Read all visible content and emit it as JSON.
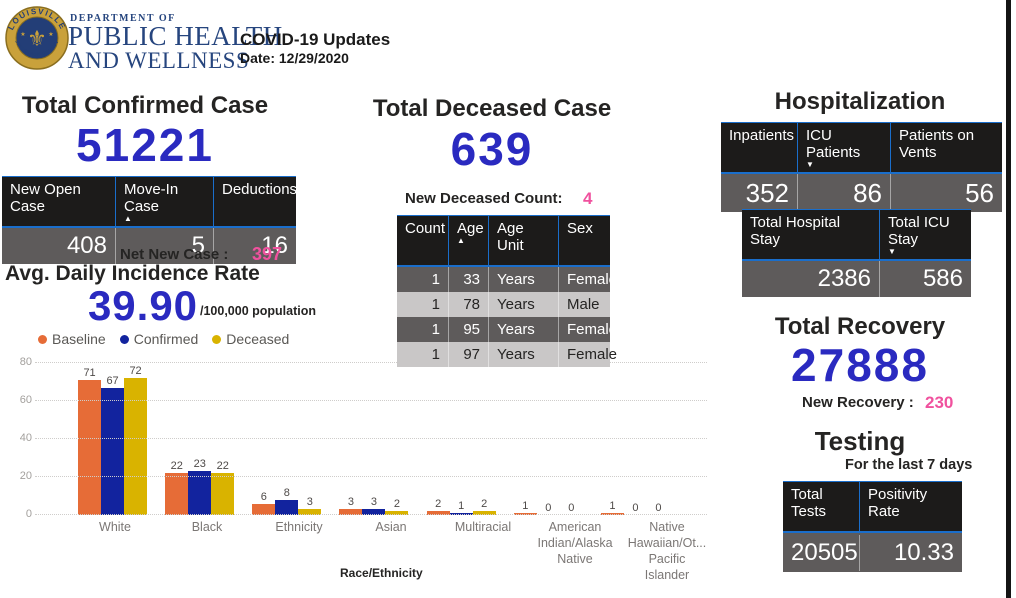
{
  "header": {
    "dept_line1": "DEPARTMENT OF",
    "dept_line2": "PUBLIC HEALTH",
    "dept_line3": "AND WELLNESS",
    "title": "COVID-19 Updates",
    "date": "Date: 12/29/2020",
    "logo": {
      "top_text": "LOUISVILLE",
      "bottom_text": "JEFFERSON COUNTY",
      "fleur": "⚜",
      "star": "★"
    }
  },
  "confirmed": {
    "title": "Total Confirmed Case",
    "value": "51221",
    "table": {
      "columns": [
        {
          "label": "New Open Case",
          "sort_icon": ""
        },
        {
          "label": "Move-In Case",
          "sort_icon": "▲"
        },
        {
          "label": "Deductions",
          "sort_icon": ""
        }
      ],
      "row": [
        "408",
        "5",
        "16"
      ]
    },
    "net_new_label": "Net New Case :",
    "net_new_value": "397"
  },
  "incidence": {
    "title": "Avg. Daily Incidence Rate",
    "value": "39.90",
    "unit": "/100,000 population"
  },
  "chart_data": {
    "type": "bar",
    "title": "",
    "categories": [
      "White",
      "Black",
      "Ethnicity",
      "Asian",
      "Multiracial",
      "American Indian/Alaska Native",
      "Native Hawaiian/Ot... Pacific Islander"
    ],
    "series": [
      {
        "name": "Baseline",
        "color": "#E66C37",
        "values": [
          71,
          22,
          6,
          3,
          2,
          1,
          1
        ]
      },
      {
        "name": "Confirmed",
        "color": "#12239E",
        "values": [
          67,
          23,
          8,
          3,
          1,
          0,
          0
        ]
      },
      {
        "name": "Deceased",
        "color": "#D9B300",
        "values": [
          72,
          22,
          3,
          2,
          2,
          0,
          0
        ]
      }
    ],
    "xlabel": "Race/Ethnicity",
    "ylabel": "",
    "ylim": [
      0,
      80
    ],
    "yticks": [
      0,
      20,
      40,
      60,
      80
    ],
    "grid": "dotted-horizontal",
    "legend_position": "top-left"
  },
  "deceased": {
    "title": "Total Deceased Case",
    "value": "639",
    "new_count_label": "New Deceased Count:",
    "new_count_value": "4",
    "table": {
      "columns": [
        {
          "label": "Count",
          "sort_icon": ""
        },
        {
          "label": "Age",
          "sort_icon": "▲"
        },
        {
          "label": "Age Unit",
          "sort_icon": ""
        },
        {
          "label": "Sex",
          "sort_icon": ""
        }
      ],
      "rows": [
        [
          "1",
          "33",
          "Years",
          "Female"
        ],
        [
          "1",
          "78",
          "Years",
          "Male"
        ],
        [
          "1",
          "95",
          "Years",
          "Female"
        ],
        [
          "1",
          "97",
          "Years",
          "Female"
        ]
      ]
    }
  },
  "hospitalization": {
    "title": "Hospitalization",
    "table1": {
      "columns": [
        {
          "label": "Inpatients",
          "sort_icon": ""
        },
        {
          "label": "ICU Patients",
          "sort_icon": "▼"
        },
        {
          "label": "Patients on Vents",
          "sort_icon": ""
        }
      ],
      "row": [
        "352",
        "86",
        "56"
      ]
    },
    "table2": {
      "columns": [
        {
          "label": "Total Hospital Stay",
          "sort_icon": ""
        },
        {
          "label": "Total ICU Stay",
          "sort_icon": "▼"
        }
      ],
      "row": [
        "2386",
        "586"
      ]
    }
  },
  "recovery": {
    "title": "Total Recovery",
    "value": "27888",
    "new_label": "New Recovery :",
    "new_value": "230"
  },
  "testing": {
    "title": "Testing",
    "subtitle": "For the last 7 days",
    "table": {
      "columns": [
        {
          "label": "Total Tests",
          "sort_icon": ""
        },
        {
          "label": "Positivity Rate",
          "sort_icon": ""
        }
      ],
      "row": [
        "20505",
        "10.33"
      ]
    }
  },
  "colors": {
    "accent_blue_number": "#2A2AC0",
    "accent_pink": "#F0519E",
    "table_header_bg": "#1C1B1A",
    "table_row_dark": "#5E5B5B",
    "table_row_light": "#C9C7C7",
    "table_grid_blue": "#1A6ECB",
    "logo_navy": "#26457E",
    "logo_gold": "#C9A13B"
  }
}
